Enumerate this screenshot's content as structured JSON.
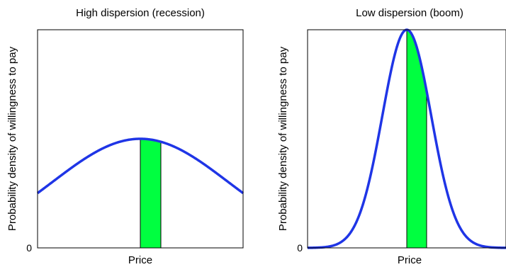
{
  "chart_data": [
    {
      "type": "line",
      "title": "High dispersion (recession)",
      "xlabel": "Price",
      "ylabel": "Probability density of willingness to pay",
      "ytick_label": "0",
      "xlim": [
        -5,
        5
      ],
      "ylim": [
        0,
        1
      ],
      "series": [
        {
          "distribution": "normal",
          "mean": 0,
          "sd": 4.26,
          "peak": 0.5
        }
      ],
      "shaded_band": {
        "x0": 0,
        "x1": 1,
        "top_left": 0.5,
        "top_right": 0.49
      },
      "colors": {
        "line": "#1f35e6",
        "band": "#00ff40"
      }
    },
    {
      "type": "line",
      "title": "Low dispersion (boom)",
      "xlabel": "Price",
      "ylabel": "Probability density of willingness to pay",
      "ytick_label": "0",
      "xlim": [
        -5,
        5
      ],
      "ylim": [
        0,
        1
      ],
      "series": [
        {
          "distribution": "normal",
          "mean": 0,
          "sd": 1.23,
          "peak": 1.0
        }
      ],
      "shaded_band": {
        "x0": 0,
        "x1": 1,
        "top_left": 1.0,
        "top_right": 0.72
      },
      "colors": {
        "line": "#1f35e6",
        "band": "#00ff40"
      }
    }
  ]
}
